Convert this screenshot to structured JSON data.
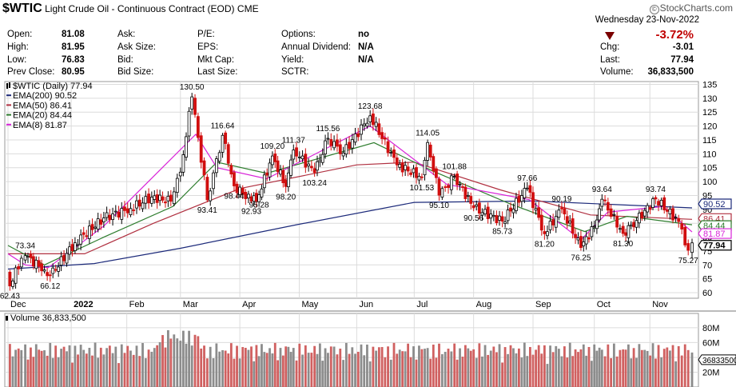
{
  "header": {
    "symbol": "$WTIC",
    "name": "Light Crude Oil - Continuous Contract (EOD)",
    "exchange": "CME",
    "brand": "StockCharts.com",
    "brand_mark": "©",
    "date": "Wednesday 23-Nov-2022",
    "change_pct": "-3.72%",
    "change_direction": "down",
    "quote_left": [
      {
        "label": "Open:",
        "value": "81.08"
      },
      {
        "label": "High:",
        "value": "81.95"
      },
      {
        "label": "Low:",
        "value": "76.83"
      },
      {
        "label": "Prev Close:",
        "value": "80.95"
      }
    ],
    "quote_mid1": [
      {
        "label": "Ask:"
      },
      {
        "label": "Ask Size:"
      },
      {
        "label": "Bid:"
      },
      {
        "label": "Bid Size:"
      }
    ],
    "quote_mid2": [
      {
        "label": "P/E:"
      },
      {
        "label": "EPS:"
      },
      {
        "label": "Mkt Cap:"
      },
      {
        "label": "Last Size:"
      }
    ],
    "quote_mid3": [
      {
        "label": "Options:",
        "value": "no"
      },
      {
        "label": "Annual Dividend:",
        "value": "N/A"
      },
      {
        "label": "Yield:",
        "value": "N/A"
      },
      {
        "label": "SCTR:",
        "value": ""
      }
    ],
    "quote_right": [
      {
        "label": "Chg:",
        "value": "-3.01"
      },
      {
        "label": "Last:",
        "value": "77.94"
      },
      {
        "label": "Volume:",
        "value": "36,833,500"
      }
    ]
  },
  "legend": [
    {
      "label": "$WTIC (Daily) 77.94",
      "color": "#000000"
    },
    {
      "label": "EMA(200) 90.52",
      "color": "#1c2a7a"
    },
    {
      "label": "EMA(50) 86.41",
      "color": "#b03040"
    },
    {
      "label": "EMA(20) 84.44",
      "color": "#2e7d2e"
    },
    {
      "label": "EMA(8) 81.87",
      "color": "#d822d8"
    }
  ],
  "colors": {
    "up": "#000000",
    "down": "#d10f0f",
    "grid": "#dcdcdc",
    "ema200": "#1c2a7a",
    "ema50": "#b03040",
    "ema20": "#2e7d2e",
    "ema8": "#d822d8",
    "vol_up": "#8c8c8c",
    "vol_down": "#d06060"
  },
  "chart_data": {
    "type": "line",
    "x_months": [
      "Dec",
      "2022",
      "Feb",
      "Mar",
      "Apr",
      "May",
      "Jun",
      "Jul",
      "Aug",
      "Sep",
      "Oct",
      "Nov"
    ],
    "y_ticks": [
      60,
      65,
      70,
      75,
      80,
      85,
      90,
      95,
      100,
      105,
      110,
      115,
      120,
      125,
      130,
      135
    ],
    "ylim": [
      58,
      136
    ],
    "close_path": [
      [
        "2021-12-01",
        66.5
      ],
      [
        "2021-12-02",
        62.43
      ],
      [
        "2021-12-08",
        72.4
      ],
      [
        "2021-12-10",
        73.34
      ],
      [
        "2021-12-20",
        68.2
      ],
      [
        "2021-12-23",
        66.12
      ],
      [
        "2022-01-05",
        78.0
      ],
      [
        "2022-01-20",
        86.9
      ],
      [
        "2022-02-03",
        90.3
      ],
      [
        "2022-02-14",
        94.4
      ],
      [
        "2022-02-24",
        92.9
      ],
      [
        "2022-03-01",
        103.4
      ],
      [
        "2022-03-07",
        130.5
      ],
      [
        "2022-03-15",
        93.41
      ],
      [
        "2022-03-23",
        116.64
      ],
      [
        "2022-03-29",
        98.44
      ],
      [
        "2022-04-07",
        92.93
      ],
      [
        "2022-04-11",
        95.28
      ],
      [
        "2022-04-18",
        109.2
      ],
      [
        "2022-04-25",
        98.2
      ],
      [
        "2022-04-29",
        111.37
      ],
      [
        "2022-05-10",
        103.24
      ],
      [
        "2022-05-17",
        115.56
      ],
      [
        "2022-05-25",
        110.3
      ],
      [
        "2022-06-08",
        123.68
      ],
      [
        "2022-06-22",
        106.0
      ],
      [
        "2022-07-05",
        101.53
      ],
      [
        "2022-07-08",
        114.05
      ],
      [
        "2022-07-14",
        95.1
      ],
      [
        "2022-07-22",
        101.88
      ],
      [
        "2022-08-01",
        90.56
      ],
      [
        "2022-08-16",
        85.73
      ],
      [
        "2022-08-29",
        97.66
      ],
      [
        "2022-09-07",
        81.2
      ],
      [
        "2022-09-16",
        90.19
      ],
      [
        "2022-09-26",
        76.25
      ],
      [
        "2022-10-03",
        84.0
      ],
      [
        "2022-10-07",
        93.64
      ],
      [
        "2022-10-18",
        81.3
      ],
      [
        "2022-10-25",
        86.0
      ],
      [
        "2022-11-04",
        93.74
      ],
      [
        "2022-11-16",
        85.6
      ],
      [
        "2022-11-21",
        75.27
      ],
      [
        "2022-11-23",
        77.94
      ]
    ],
    "price_annotations": [
      {
        "label": "62.43",
        "date": "2021-12-02",
        "value": 62.43,
        "pos": "below"
      },
      {
        "label": "73.34",
        "date": "2021-12-10",
        "value": 73.34,
        "pos": "above"
      },
      {
        "label": "66.12",
        "date": "2021-12-23",
        "value": 66.12,
        "pos": "below"
      },
      {
        "label": "130.50",
        "date": "2022-03-07",
        "value": 130.5,
        "pos": "above"
      },
      {
        "label": "93.41",
        "date": "2022-03-15",
        "value": 93.41,
        "pos": "below"
      },
      {
        "label": "116.64",
        "date": "2022-03-23",
        "value": 116.64,
        "pos": "above"
      },
      {
        "label": "98.44",
        "date": "2022-03-29",
        "value": 98.44,
        "pos": "below"
      },
      {
        "label": "92.93",
        "date": "2022-04-07",
        "value": 92.93,
        "pos": "below"
      },
      {
        "label": "95.28",
        "date": "2022-04-11",
        "value": 95.28,
        "pos": "below"
      },
      {
        "label": "109.20",
        "date": "2022-04-18",
        "value": 109.2,
        "pos": "above"
      },
      {
        "label": "98.20",
        "date": "2022-04-25",
        "value": 98.2,
        "pos": "below"
      },
      {
        "label": "111.37",
        "date": "2022-04-29",
        "value": 111.37,
        "pos": "above"
      },
      {
        "label": "103.24",
        "date": "2022-05-10",
        "value": 103.24,
        "pos": "below"
      },
      {
        "label": "115.56",
        "date": "2022-05-17",
        "value": 115.56,
        "pos": "above"
      },
      {
        "label": "123.68",
        "date": "2022-06-08",
        "value": 123.68,
        "pos": "above"
      },
      {
        "label": "101.53",
        "date": "2022-07-05",
        "value": 101.53,
        "pos": "below"
      },
      {
        "label": "114.05",
        "date": "2022-07-08",
        "value": 114.05,
        "pos": "above"
      },
      {
        "label": "95.10",
        "date": "2022-07-14",
        "value": 95.1,
        "pos": "below"
      },
      {
        "label": "101.88",
        "date": "2022-07-22",
        "value": 101.88,
        "pos": "above"
      },
      {
        "label": "90.56",
        "date": "2022-08-01",
        "value": 90.56,
        "pos": "below"
      },
      {
        "label": "85.73",
        "date": "2022-08-16",
        "value": 85.73,
        "pos": "below"
      },
      {
        "label": "97.66",
        "date": "2022-08-29",
        "value": 97.66,
        "pos": "above"
      },
      {
        "label": "81.20",
        "date": "2022-09-07",
        "value": 81.2,
        "pos": "below"
      },
      {
        "label": "90.19",
        "date": "2022-09-16",
        "value": 90.19,
        "pos": "above"
      },
      {
        "label": "76.25",
        "date": "2022-09-26",
        "value": 76.25,
        "pos": "below"
      },
      {
        "label": "93.64",
        "date": "2022-10-07",
        "value": 93.64,
        "pos": "above"
      },
      {
        "label": "81.30",
        "date": "2022-10-18",
        "value": 81.3,
        "pos": "below"
      },
      {
        "label": "93.74",
        "date": "2022-11-04",
        "value": 93.74,
        "pos": "above"
      },
      {
        "label": "75.27",
        "date": "2022-11-21",
        "value": 75.27,
        "pos": "below"
      }
    ],
    "ema": [
      {
        "name": "EMA(200)",
        "color_key": "ema200",
        "points": [
          [
            "2021-12-01",
            68.5
          ],
          [
            "2022-01-15",
            70.5
          ],
          [
            "2022-03-01",
            76.0
          ],
          [
            "2022-05-01",
            84.5
          ],
          [
            "2022-07-01",
            92.5
          ],
          [
            "2022-09-01",
            93.0
          ],
          [
            "2022-11-23",
            90.52
          ]
        ]
      },
      {
        "name": "EMA(50)",
        "color_key": "ema50",
        "points": [
          [
            "2021-12-01",
            74.0
          ],
          [
            "2022-01-10",
            74.0
          ],
          [
            "2022-02-15",
            85.0
          ],
          [
            "2022-04-01",
            97.5
          ],
          [
            "2022-06-01",
            106.0
          ],
          [
            "2022-07-01",
            107.0
          ],
          [
            "2022-08-15",
            97.0
          ],
          [
            "2022-10-01",
            88.0
          ],
          [
            "2022-11-23",
            86.41
          ]
        ]
      },
      {
        "name": "EMA(20)",
        "color_key": "ema20",
        "points": [
          [
            "2021-12-01",
            77.0
          ],
          [
            "2021-12-20",
            70.0
          ],
          [
            "2022-01-20",
            80.0
          ],
          [
            "2022-02-25",
            91.0
          ],
          [
            "2022-03-20",
            107.0
          ],
          [
            "2022-04-15",
            103.0
          ],
          [
            "2022-06-10",
            114.0
          ],
          [
            "2022-07-10",
            104.0
          ],
          [
            "2022-08-20",
            92.0
          ],
          [
            "2022-09-28",
            82.0
          ],
          [
            "2022-10-20",
            87.5
          ],
          [
            "2022-11-23",
            84.44
          ]
        ]
      },
      {
        "name": "EMA(8)",
        "color_key": "ema8",
        "points": [
          [
            "2021-12-01",
            74.0
          ],
          [
            "2021-12-10",
            70.0
          ],
          [
            "2021-12-22",
            69.0
          ],
          [
            "2022-01-20",
            84.0
          ],
          [
            "2022-03-09",
            117.0
          ],
          [
            "2022-03-20",
            105.0
          ],
          [
            "2022-04-15",
            101.0
          ],
          [
            "2022-06-08",
            120.0
          ],
          [
            "2022-07-18",
            99.0
          ],
          [
            "2022-08-30",
            93.5
          ],
          [
            "2022-09-26",
            79.0
          ],
          [
            "2022-10-10",
            89.0
          ],
          [
            "2022-11-08",
            91.0
          ],
          [
            "2022-11-23",
            81.87
          ]
        ]
      }
    ],
    "right_tags": [
      {
        "label": "90.52",
        "value": 90.52,
        "color_key": "ema200"
      },
      {
        "label": "86.41",
        "value": 86.41,
        "color_key": "ema50"
      },
      {
        "label": "84.44",
        "value": 84.44,
        "color_key": "ema20"
      },
      {
        "label": "81.87",
        "value": 81.87,
        "color_key": "ema8"
      },
      {
        "label": "77.94",
        "value": 77.94,
        "color_key": "up"
      }
    ],
    "volume": {
      "title": "Volume 36,833,500",
      "y_ticks": [
        "80M",
        "60M",
        "40M",
        "20M"
      ],
      "y_tick_values": [
        80,
        60,
        40,
        20
      ],
      "ymax_millions": 95,
      "last_tag": "36833500",
      "last_value_millions": 36.83
    }
  }
}
